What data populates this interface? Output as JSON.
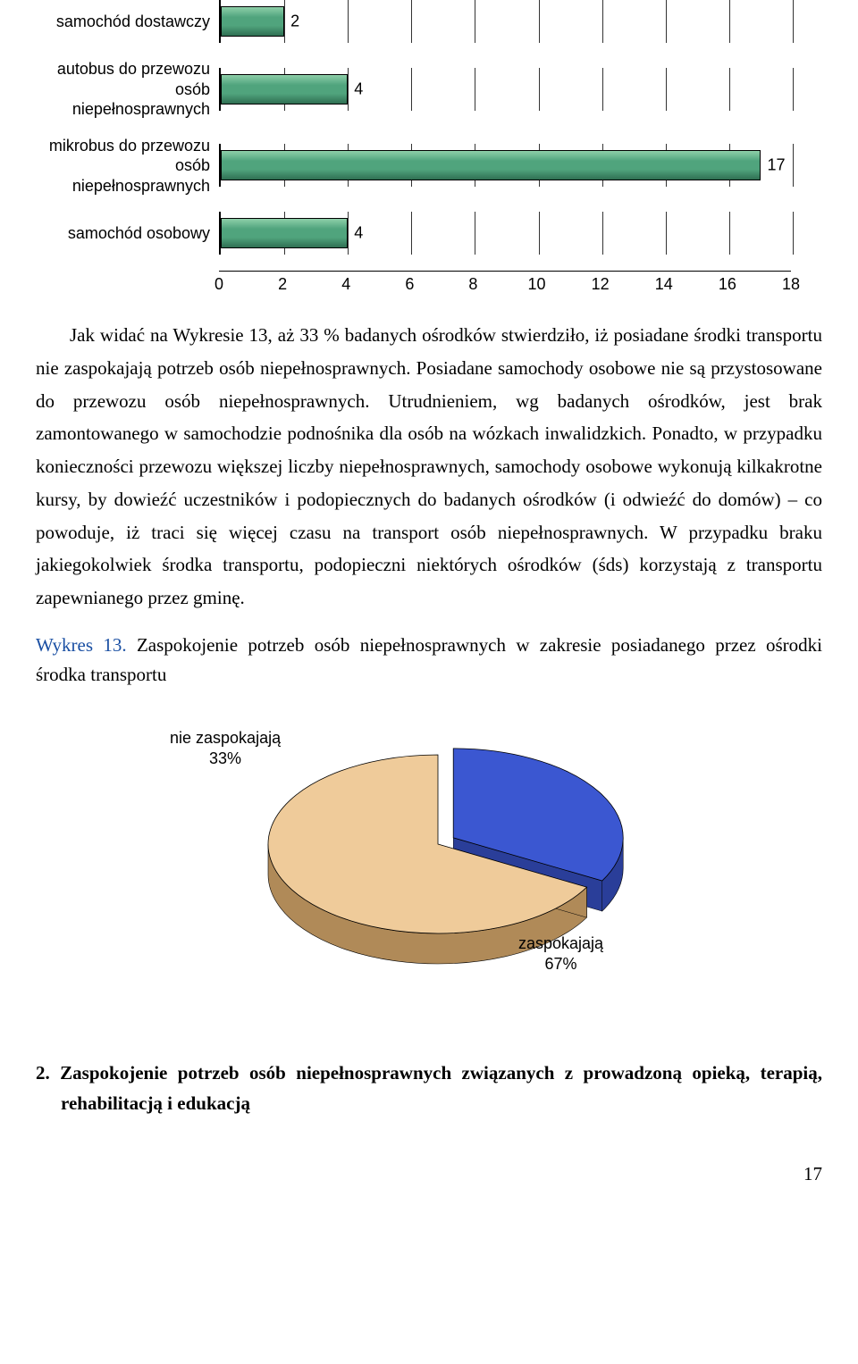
{
  "bar_chart": {
    "type": "bar-horizontal",
    "x_max": 18,
    "x_tick_step": 2,
    "x_ticks": [
      0,
      2,
      4,
      6,
      8,
      10,
      12,
      14,
      16,
      18
    ],
    "bar_color": "#50a47d",
    "bar_border": "#000000",
    "grid_color": "#333333",
    "label_fontsize": 18,
    "value_fontsize": 18,
    "categories": [
      {
        "label": "samochód dostawczy",
        "value": 2
      },
      {
        "label": "autobus do przewozu osób niepełnosprawnych",
        "value": 4
      },
      {
        "label": "mikrobus do przewozu osób niepełnosprawnych",
        "value": 17
      },
      {
        "label": "samochód osobowy",
        "value": 4
      }
    ]
  },
  "paragraph1": "Jak widać na Wykresie 13, aż 33 % badanych ośrodków stwierdziło, iż posiadane środki transportu nie zaspokajają potrzeb osób niepełnosprawnych. Posiadane samochody osobowe nie są przystosowane do przewozu osób niepełnosprawnych. Utrudnieniem, wg badanych ośrodków, jest brak zamontowanego w samochodzie podnośnika dla osób na wózkach inwalidzkich. Ponadto, w przypadku konieczności przewozu większej liczby niepełnosprawnych, samochody osobowe  wykonują kilkakrotne kursy, by dowieźć uczestników i podopiecznych do badanych ośrodków (i odwieźć do domów) – co powoduje, iż traci się więcej czasu na transport osób niepełnosprawnych. W przypadku braku jakiegokolwiek środka transportu, podopieczni niektórych ośrodków (śds) korzystają z transportu zapewnianego przez gminę.",
  "caption_prefix": "Wykres 13.",
  "caption_rest": " Zaspokojenie potrzeb osób niepełnosprawnych w zakresie posiadanego przez ośrodki środka transportu",
  "pie_chart": {
    "type": "pie-3d",
    "slices": [
      {
        "label_line1": "nie zaspokajają",
        "label_line2": "33%",
        "value": 33,
        "color": "#3b57d1",
        "side_color": "#2a3e99"
      },
      {
        "label_line1": "zaspokajają",
        "label_line2": "67%",
        "value": 67,
        "color": "#efcb9a",
        "side_color": "#b08a58"
      }
    ],
    "background_color": "#ffffff",
    "label_fontsize": 18
  },
  "heading": "2.  Zaspokojenie potrzeb osób niepełnosprawnych związanych z prowadzoną opieką, terapią, rehabilitacją i edukacją",
  "page_number": "17"
}
